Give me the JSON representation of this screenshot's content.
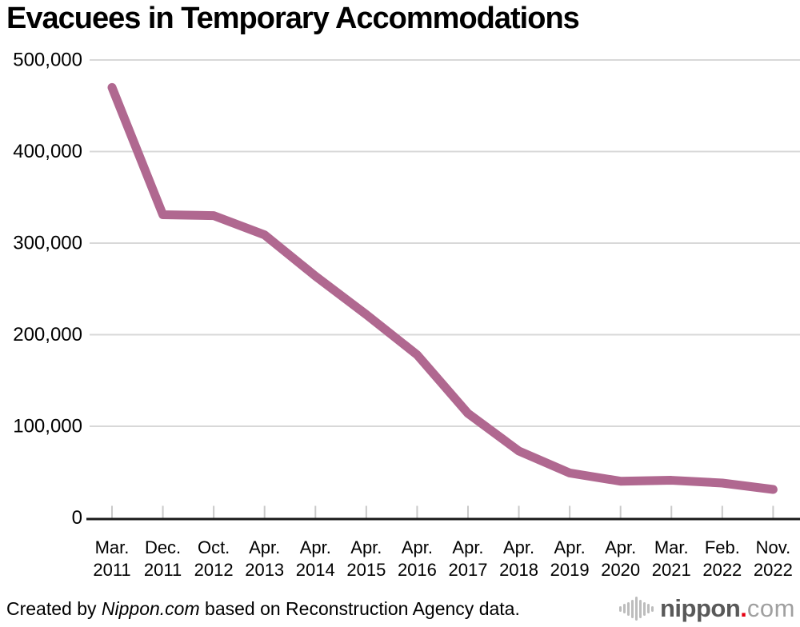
{
  "chart_data": {
    "type": "line",
    "title": "Evacuees in Temporary Accommodations",
    "series_name": "Evacuees in temporary accommodations",
    "categories": [
      "Mar. 2011",
      "Dec. 2011",
      "Oct. 2012",
      "Apr. 2013",
      "Apr. 2014",
      "Apr. 2015",
      "Apr. 2016",
      "Apr. 2017",
      "Apr. 2018",
      "Apr. 2019",
      "Apr. 2020",
      "Mar. 2021",
      "Feb. 2022",
      "Nov. 2022"
    ],
    "values": [
      470000,
      331000,
      330000,
      309000,
      264000,
      222000,
      178000,
      114000,
      73000,
      49000,
      40000,
      41000,
      38000,
      31000
    ],
    "xlabel": "",
    "ylabel": "",
    "ylim": [
      0,
      500000
    ],
    "ytick_step": 100000,
    "ytick_labels": [
      "0",
      "100,000",
      "200,000",
      "300,000",
      "400,000",
      "500,000"
    ],
    "grid": "horizontal-only",
    "legend": "none",
    "line_color": "#b06890",
    "gridline_color": "#d8d8d8",
    "axis_color": "#1a1a1a",
    "tick_color": "#c9c9c9"
  },
  "footer": {
    "credit_prefix": "Created by ",
    "credit_source": "Nippon.com",
    "credit_suffix": " based on Reconstruction Agency data.",
    "logo": {
      "name": "nippon",
      "dot": ".",
      "tld": "com",
      "name_color": "#595959",
      "dot_color": "#e60012",
      "tld_color": "#a0a0a0",
      "bars_color": "#bdbdbd"
    }
  }
}
